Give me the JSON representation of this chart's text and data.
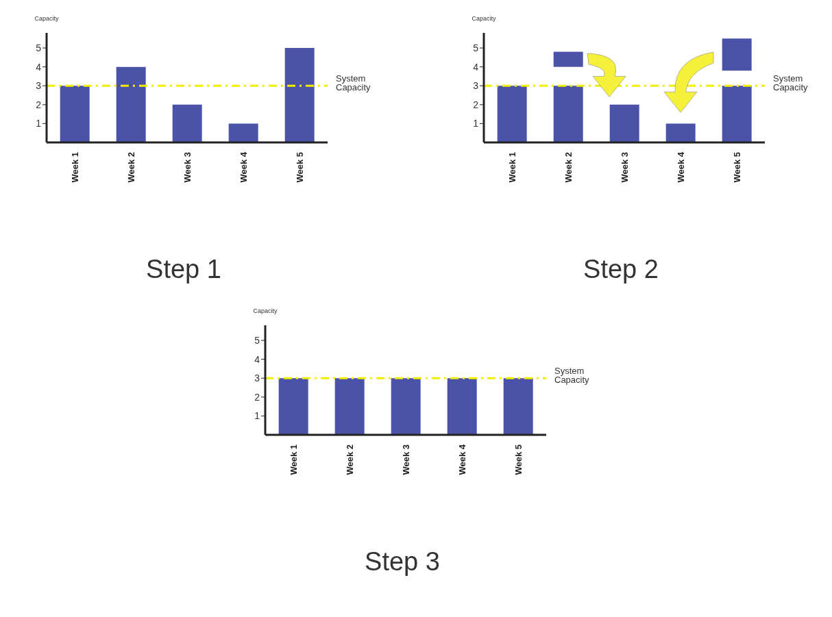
{
  "chart_data": [
    {
      "type": "bar",
      "title": "Step 1",
      "ylabel": "Capacity",
      "categories": [
        "Week 1",
        "Week 2",
        "Week 3",
        "Week 4",
        "Week 5"
      ],
      "values": [
        3,
        4,
        2,
        1,
        5
      ],
      "color": "#4b53a8",
      "ylim": [
        0,
        5.8
      ],
      "yticks": [
        1,
        2,
        3,
        4,
        5
      ],
      "grid": false,
      "legend": false,
      "ref_lines": [
        {
          "axis": "y",
          "value": 3,
          "label": "System Capacity",
          "color": "#f2ee00",
          "line_style": "dashed"
        }
      ]
    },
    {
      "type": "bar",
      "title": "Step 2",
      "ylabel": "Capacity",
      "categories": [
        "Week 1",
        "Week 2",
        "Week 3",
        "Week 4",
        "Week 5"
      ],
      "series": [
        {
          "color": "#4b53a8",
          "values": [
            3,
            3,
            2,
            1,
            3
          ]
        },
        {
          "color": "#4b53a8",
          "values": [
            null,
            0.8,
            null,
            null,
            1.7
          ],
          "base": [
            null,
            4,
            null,
            null,
            3.8
          ]
        }
      ],
      "ylim": [
        0,
        5.8
      ],
      "yticks": [
        1,
        2,
        3,
        4,
        5
      ],
      "grid": false,
      "legend": false,
      "ref_lines": [
        {
          "axis": "y",
          "value": 3,
          "label": "System Capacity",
          "color": "#f2ee00",
          "line_style": "dashed"
        }
      ]
    },
    {
      "type": "bar",
      "title": "Step 3",
      "ylabel": "Capacity",
      "categories": [
        "Week 1",
        "Week 2",
        "Week 3",
        "Week 4",
        "Week 5"
      ],
      "values": [
        3,
        3,
        3,
        3,
        3
      ],
      "color": "#4b53a8",
      "ylim": [
        0,
        5.8
      ],
      "yticks": [
        1,
        2,
        3,
        4,
        5
      ],
      "grid": false,
      "legend": false,
      "ref_lines": [
        {
          "axis": "y",
          "value": 3,
          "label": "System Capacity",
          "color": "#f2ee00",
          "line_style": "dashed"
        }
      ]
    }
  ]
}
